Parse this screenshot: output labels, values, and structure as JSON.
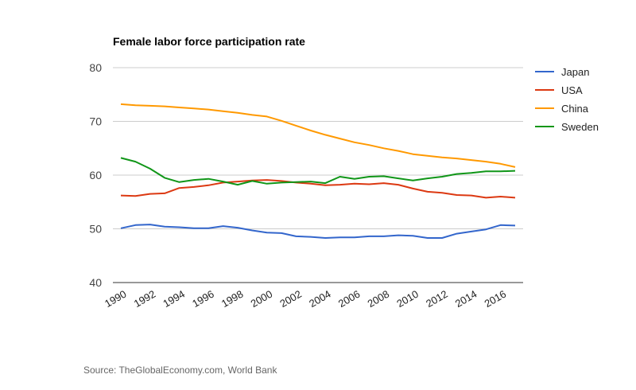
{
  "chart_data": {
    "type": "line",
    "title": "Female labor force participation rate",
    "xlabel": "",
    "ylabel": "",
    "ylim": [
      40,
      80
    ],
    "yticks": [
      "40",
      "50",
      "60",
      "70",
      "80"
    ],
    "xlim": [
      1990,
      2017
    ],
    "xticks": [
      "1990",
      "1992",
      "1994",
      "1996",
      "1998",
      "2000",
      "2002",
      "2004",
      "2006",
      "2008",
      "2010",
      "2012",
      "2014",
      "2016"
    ],
    "grid": true,
    "legend": "right",
    "x": [
      1990,
      1991,
      1992,
      1993,
      1994,
      1995,
      1996,
      1997,
      1998,
      1999,
      2000,
      2001,
      2002,
      2003,
      2004,
      2005,
      2006,
      2007,
      2008,
      2009,
      2010,
      2011,
      2012,
      2013,
      2014,
      2015,
      2016,
      2017
    ],
    "series": [
      {
        "name": "Japan",
        "color": "#3366cc",
        "values": [
          50.1,
          50.7,
          50.8,
          50.4,
          50.3,
          50.1,
          50.1,
          50.5,
          50.2,
          49.7,
          49.3,
          49.2,
          48.6,
          48.5,
          48.3,
          48.4,
          48.4,
          48.6,
          48.6,
          48.8,
          48.7,
          48.3,
          48.3,
          49.1,
          49.5,
          49.9,
          50.7,
          50.6
        ]
      },
      {
        "name": "USA",
        "color": "#dc3912",
        "values": [
          56.2,
          56.1,
          56.5,
          56.6,
          57.6,
          57.8,
          58.1,
          58.6,
          58.8,
          59.0,
          59.1,
          58.9,
          58.6,
          58.4,
          58.1,
          58.2,
          58.4,
          58.3,
          58.5,
          58.2,
          57.5,
          56.9,
          56.7,
          56.3,
          56.2,
          55.8,
          56.0,
          55.8
        ]
      },
      {
        "name": "China",
        "color": "#ff9900",
        "values": [
          73.2,
          73.0,
          72.9,
          72.8,
          72.6,
          72.4,
          72.2,
          71.9,
          71.6,
          71.2,
          70.9,
          70.1,
          69.2,
          68.3,
          67.5,
          66.8,
          66.1,
          65.6,
          65.0,
          64.5,
          63.9,
          63.6,
          63.3,
          63.1,
          62.8,
          62.5,
          62.1,
          61.5
        ]
      },
      {
        "name": "Sweden",
        "color": "#109618",
        "values": [
          63.2,
          62.5,
          61.2,
          59.5,
          58.7,
          59.1,
          59.3,
          58.8,
          58.2,
          58.9,
          58.4,
          58.6,
          58.7,
          58.8,
          58.5,
          59.7,
          59.3,
          59.7,
          59.8,
          59.4,
          59.0,
          59.4,
          59.7,
          60.2,
          60.4,
          60.7,
          60.7,
          60.8
        ]
      }
    ]
  },
  "source": "Source: TheGlobalEconomy.com, World Bank"
}
